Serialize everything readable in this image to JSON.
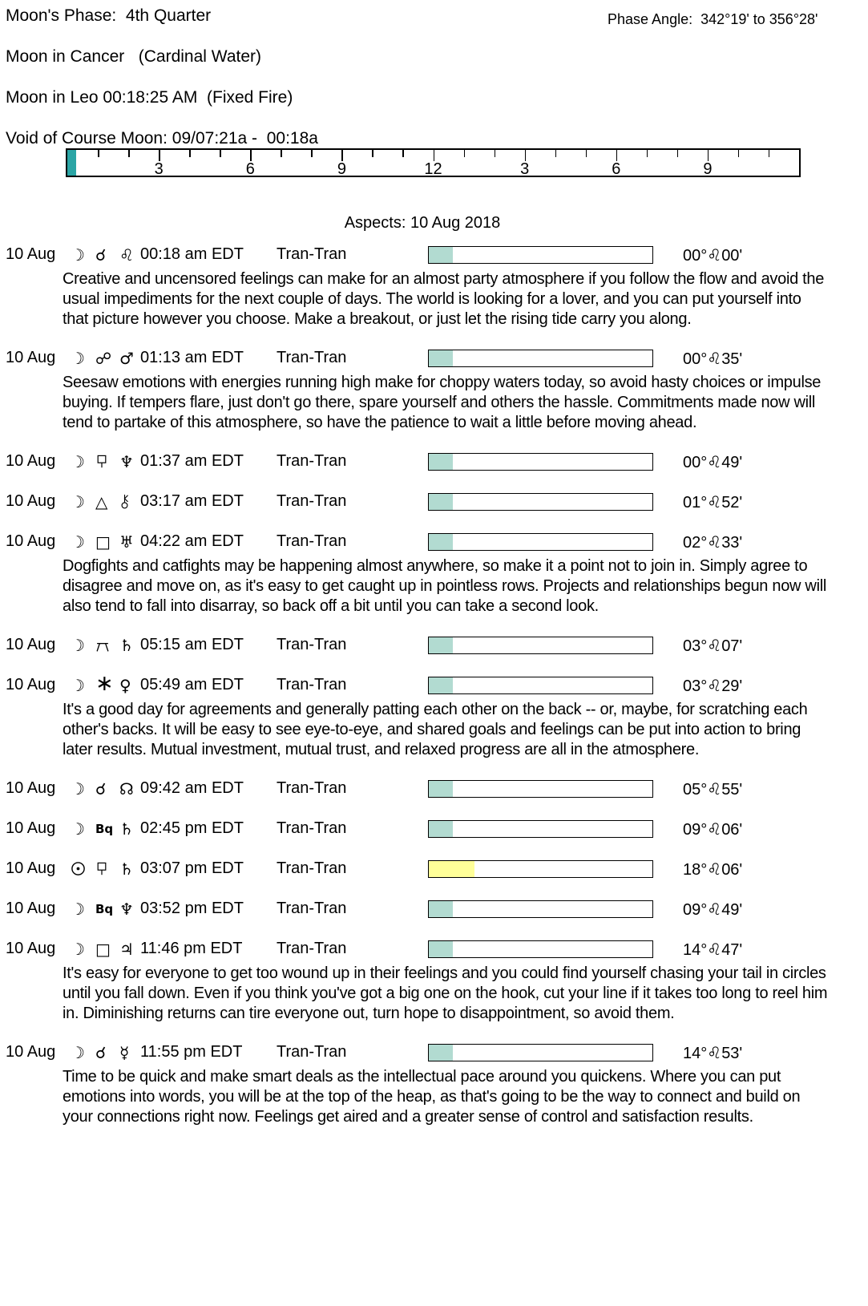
{
  "header": {
    "moon_phase_line": "Moon's Phase:  4th Quarter",
    "phase_angle_line": "Phase Angle:  342°19' to 356°28'",
    "moon_sign_line": "Moon in Cancer   (Cardinal Water)",
    "moon_ingress_line": "Moon in Leo 00:18:25 AM  (Fixed Fire)",
    "void_of_course_line": "Void of Course Moon: 09/07:21a -  00:18a"
  },
  "timeline": {
    "total_hours": 24,
    "void_fill_ratio": 0.0125,
    "void_fill_color": "#2ba5a5",
    "labels": [
      {
        "at": 3,
        "text": "3"
      },
      {
        "at": 6,
        "text": "6"
      },
      {
        "at": 9,
        "text": "9"
      },
      {
        "at": 12,
        "text": "12"
      },
      {
        "at": 15,
        "text": "3"
      },
      {
        "at": 18,
        "text": "6"
      },
      {
        "at": 21,
        "text": "9"
      }
    ]
  },
  "aspects_title": "Aspects: 10 Aug 2018",
  "colors": {
    "moon_bar_fill": "#b2dbd1",
    "sun_bar_fill": "#ffff99",
    "bar_border": "#000000"
  },
  "aspects": [
    {
      "date": "10 Aug",
      "body1": "moon",
      "aspect": "conjunction",
      "body2": "leo",
      "time": "00:18 am EDT",
      "type": "Tran-Tran",
      "bar": {
        "fill_ratio": 0.107,
        "color": "#b2dbd1"
      },
      "position": {
        "deg": "00°",
        "sign": "leo",
        "min": "00'"
      },
      "description": "Creative and uncensored feelings can make for an almost party atmosphere if you follow the flow and avoid the usual impediments for the next couple of days. The world is looking for a lover, and you can put yourself into that picture however you choose. Make a breakout, or just let the rising tide carry you along."
    },
    {
      "date": "10 Aug",
      "body1": "moon",
      "aspect": "opposition",
      "body2": "mars",
      "time": "01:13 am EDT",
      "type": "Tran-Tran",
      "bar": {
        "fill_ratio": 0.107,
        "color": "#b2dbd1"
      },
      "position": {
        "deg": "00°",
        "sign": "leo",
        "min": "35'"
      },
      "description": "Seesaw emotions with energies running high make for choppy waters today, so avoid hasty choices or impulse buying. If tempers flare, just don't go there, spare yourself and others the hassle. Commitments made now will tend to partake of this atmosphere, so have the patience to wait a little before moving ahead."
    },
    {
      "date": "10 Aug",
      "body1": "moon",
      "aspect": "sesquiquadrate",
      "body2": "neptune",
      "time": "01:37 am EDT",
      "type": "Tran-Tran",
      "bar": {
        "fill_ratio": 0.107,
        "color": "#b2dbd1"
      },
      "position": {
        "deg": "00°",
        "sign": "leo",
        "min": "49'"
      }
    },
    {
      "date": "10 Aug",
      "body1": "moon",
      "aspect": "trine",
      "body2": "chiron",
      "time": "03:17 am EDT",
      "type": "Tran-Tran",
      "bar": {
        "fill_ratio": 0.107,
        "color": "#b2dbd1"
      },
      "position": {
        "deg": "01°",
        "sign": "leo",
        "min": "52'"
      }
    },
    {
      "date": "10 Aug",
      "body1": "moon",
      "aspect": "square",
      "body2": "uranus",
      "time": "04:22 am EDT",
      "type": "Tran-Tran",
      "bar": {
        "fill_ratio": 0.107,
        "color": "#b2dbd1"
      },
      "position": {
        "deg": "02°",
        "sign": "leo",
        "min": "33'"
      },
      "description": "Dogfights and catfights may be happening almost anywhere, so make it a point not to join in. Simply agree to disagree and move on, as it's easy to get caught up in pointless rows. Projects and relationships begun now will also tend to fall into disarray, so back off a bit until you can take a second look."
    },
    {
      "date": "10 Aug",
      "body1": "moon",
      "aspect": "quincunx",
      "body2": "saturn",
      "time": "05:15 am EDT",
      "type": "Tran-Tran",
      "bar": {
        "fill_ratio": 0.107,
        "color": "#b2dbd1"
      },
      "position": {
        "deg": "03°",
        "sign": "leo",
        "min": "07'"
      }
    },
    {
      "date": "10 Aug",
      "body1": "moon",
      "aspect": "sextile",
      "body2": "venus",
      "time": "05:49 am EDT",
      "type": "Tran-Tran",
      "bar": {
        "fill_ratio": 0.107,
        "color": "#b2dbd1"
      },
      "position": {
        "deg": "03°",
        "sign": "leo",
        "min": "29'"
      },
      "description": "It's a good day for agreements and generally patting each other on the back -- or, maybe, for scratching each other's backs. It will be easy to see eye-to-eye, and shared goals and feelings can be put into action to bring later results. Mutual investment, mutual trust, and relaxed progress are all in the atmosphere."
    },
    {
      "date": "10 Aug",
      "body1": "moon",
      "aspect": "conjunction",
      "body2": "north-node",
      "time": "09:42 am EDT",
      "type": "Tran-Tran",
      "bar": {
        "fill_ratio": 0.107,
        "color": "#b2dbd1"
      },
      "position": {
        "deg": "05°",
        "sign": "leo",
        "min": "55'"
      }
    },
    {
      "date": "10 Aug",
      "body1": "moon",
      "aspect": "biquintile",
      "body2": "saturn",
      "time": "02:45 pm EDT",
      "type": "Tran-Tran",
      "bar": {
        "fill_ratio": 0.107,
        "color": "#b2dbd1"
      },
      "position": {
        "deg": "09°",
        "sign": "leo",
        "min": "06'"
      }
    },
    {
      "date": "10 Aug",
      "body1": "sun",
      "aspect": "sesquiquadrate",
      "body2": "saturn",
      "time": "03:07 pm EDT",
      "type": "Tran-Tran",
      "bar": {
        "fill_ratio": 0.203,
        "color": "#ffff99"
      },
      "position": {
        "deg": "18°",
        "sign": "leo",
        "min": "06'"
      }
    },
    {
      "date": "10 Aug",
      "body1": "moon",
      "aspect": "biquintile",
      "body2": "neptune",
      "time": "03:52 pm EDT",
      "type": "Tran-Tran",
      "bar": {
        "fill_ratio": 0.107,
        "color": "#b2dbd1"
      },
      "position": {
        "deg": "09°",
        "sign": "leo",
        "min": "49'"
      }
    },
    {
      "date": "10 Aug",
      "body1": "moon",
      "aspect": "square",
      "body2": "jupiter",
      "time": "11:46 pm EDT",
      "type": "Tran-Tran",
      "bar": {
        "fill_ratio": 0.107,
        "color": "#b2dbd1"
      },
      "position": {
        "deg": "14°",
        "sign": "leo",
        "min": "47'"
      },
      "description": "It's easy for everyone to get too wound up in their feelings and you could find yourself chasing your tail in circles until you fall down. Even if you think you've got a big one on the hook, cut your line if it takes too long to reel him in. Diminishing returns can tire everyone out, turn hope to disappointment, so avoid them."
    },
    {
      "date": "10 Aug",
      "body1": "moon",
      "aspect": "conjunction",
      "body2": "mercury",
      "time": "11:55 pm EDT",
      "type": "Tran-Tran",
      "bar": {
        "fill_ratio": 0.107,
        "color": "#b2dbd1"
      },
      "position": {
        "deg": "14°",
        "sign": "leo",
        "min": "53'"
      },
      "description": "Time to be quick and make smart deals as the intellectual pace around you quickens. Where you can put emotions into words, you will be at the top of the heap, as that's going to be the way to connect and build on your connections right now. Feelings get aired and a greater sense of control and satisfaction results."
    }
  ]
}
